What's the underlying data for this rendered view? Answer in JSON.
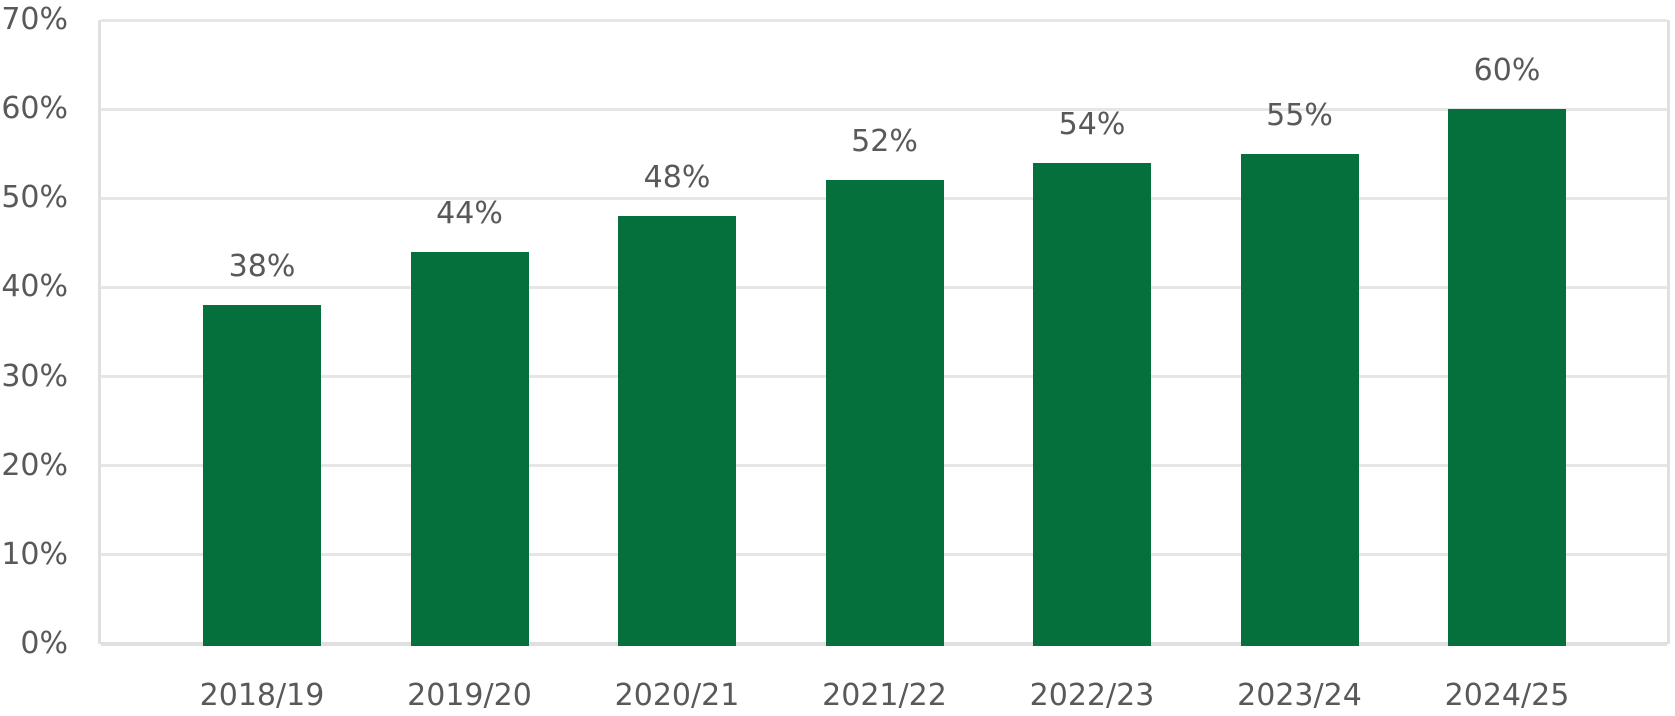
{
  "chart_data": {
    "type": "bar",
    "title": "",
    "xlabel": "",
    "ylabel": "",
    "categories": [
      "2018/19",
      "2019/20",
      "2020/21",
      "2021/22",
      "2022/23",
      "2023/24",
      "2024/25"
    ],
    "values": [
      38,
      44,
      48,
      52,
      54,
      55,
      60
    ],
    "value_labels": [
      "38%",
      "44%",
      "48%",
      "52%",
      "54%",
      "55%",
      "60%"
    ],
    "ylim": [
      0,
      70
    ],
    "ytick_step": 10,
    "ytick_labels": [
      "0%",
      "10%",
      "20%",
      "30%",
      "40%",
      "50%",
      "60%",
      "70%"
    ],
    "grid": true,
    "legend": false,
    "colors": {
      "bar": "#05703c",
      "label_text": "#595959",
      "gridline": "#e6e6e6",
      "axis_line": "#e0e0e0",
      "background": "#ffffff"
    }
  }
}
